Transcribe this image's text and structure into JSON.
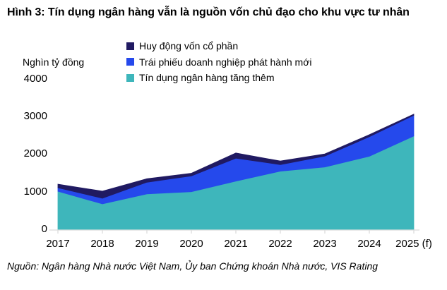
{
  "header": {
    "title": "Hình 3: Tín dụng ngân hàng vẫn là nguồn vốn chủ đạo cho khu vực tư nhân"
  },
  "chart_data": {
    "type": "area",
    "stacked": true,
    "title": "Hình 3: Tín dụng ngân hàng vẫn là nguồn vốn chủ đạo cho khu vực tư nhân",
    "ylabel": "Nghìn tỷ đồng",
    "xlabel": "",
    "categories": [
      "2017",
      "2018",
      "2019",
      "2020",
      "2021",
      "2022",
      "2023",
      "2024",
      "2025 (f)"
    ],
    "series": [
      {
        "name": "Huy động vốn cổ phần",
        "color": "#201a62",
        "values": [
          95,
          190,
          95,
          70,
          140,
          95,
          60,
          55,
          30
        ]
      },
      {
        "name": "Trái phiếu doanh nghiệp phát hành mới",
        "color": "#2549ec",
        "values": [
          95,
          150,
          310,
          420,
          610,
          175,
          290,
          520,
          550
        ]
      },
      {
        "name": "Tín dụng ngân hàng tăng thêm",
        "color": "#3eb6bb",
        "values": [
          1010,
          675,
          940,
          1000,
          1280,
          1545,
          1655,
          1940,
          2480
        ]
      }
    ],
    "stack_order_note": "bottom-to-top on chart: Tín dụng ngân hàng tăng thêm, Trái phiếu doanh nghiệp phát hành mới, Huy động vốn cổ phần",
    "totals": [
      1200,
      1015,
      1345,
      1490,
      2030,
      1815,
      2005,
      2515,
      3060
    ],
    "y_ticks": [
      0,
      1000,
      2000,
      3000,
      4000
    ],
    "ylim": [
      0,
      4000
    ],
    "legend_position": "top",
    "grid": false,
    "axis_color": "#d9d9d9",
    "text_color": "#000000"
  },
  "footer": {
    "source": "Nguồn: Ngân hàng Nhà nước Việt Nam, Ủy ban Chứng khoán Nhà nước, VIS Rating"
  }
}
